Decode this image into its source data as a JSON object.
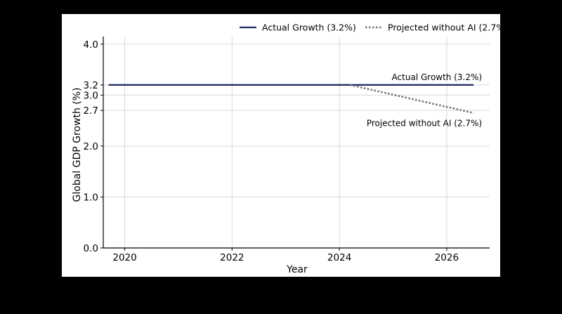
{
  "chart_data": {
    "type": "line",
    "xlabel": "Year",
    "ylabel": "Global GDP Growth (%)",
    "xlim": [
      2019.6,
      2026.8
    ],
    "ylim": [
      0,
      4.15
    ],
    "xticks": [
      2020,
      2022,
      2024,
      2026
    ],
    "xtick_labels": [
      "2020",
      "2022",
      "2024",
      "2026"
    ],
    "yticks": [
      0.0,
      1.0,
      2.0,
      2.7,
      3.0,
      3.2,
      4.0
    ],
    "ytick_labels": [
      "0.0",
      "1.0",
      "2.0",
      "2.7",
      "3.0",
      "3.2",
      "4.0"
    ],
    "grid": true,
    "legend_position": "top-right, above plot",
    "series": [
      {
        "name": "Actual Growth (3.2%)",
        "style": "solid",
        "color": "#1a2a5e",
        "x": [
          2019.7,
          2026.5
        ],
        "y": [
          3.2,
          3.2
        ]
      },
      {
        "name": "Projected without AI (2.7%)",
        "style": "dotted",
        "color": "#707070",
        "x": [
          2024.2,
          2026.5
        ],
        "y": [
          3.2,
          2.65
        ]
      }
    ],
    "annotations": [
      {
        "text": "Actual Growth (3.2%)",
        "x": 2026.5,
        "y": 3.35
      },
      {
        "text": "Projected without AI (2.7%)",
        "x": 2026.5,
        "y": 2.45
      }
    ]
  }
}
